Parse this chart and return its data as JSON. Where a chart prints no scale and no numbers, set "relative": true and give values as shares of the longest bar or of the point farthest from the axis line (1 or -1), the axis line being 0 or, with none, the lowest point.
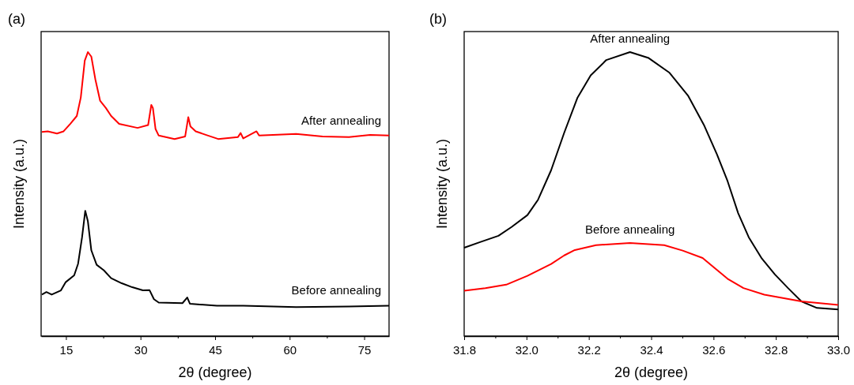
{
  "chart_data": [
    {
      "type": "line",
      "title": "(a)",
      "xlabel": "2θ (degree)",
      "ylabel": "Intensity (a.u.)",
      "relative": true,
      "legend": false,
      "grid": false,
      "tick_labels": "x",
      "xlim": [
        10,
        80
      ],
      "xticks": [
        {
          "value": 15,
          "label": "15"
        },
        {
          "value": 22.5,
          "label": null
        },
        {
          "value": 30,
          "label": "30"
        },
        {
          "value": 37.5,
          "label": null
        },
        {
          "value": 45,
          "label": "45"
        },
        {
          "value": 52.5,
          "label": null
        },
        {
          "value": 60,
          "label": "60"
        },
        {
          "value": 67.5,
          "label": null
        },
        {
          "value": 75,
          "label": "75"
        }
      ],
      "series": [
        {
          "name": "After annealing",
          "color": "#ff0000",
          "x": [
            10.16,
            11.33,
            13.19,
            14.52,
            15.85,
            17.18,
            17.98,
            18.78,
            19.41,
            20.1,
            20.9,
            21.86,
            23.03,
            24.09,
            25.69,
            29.41,
            31.53,
            32.17,
            32.49,
            33.02,
            33.66,
            36.85,
            38.98,
            39.61,
            40.04,
            41.1,
            43.23,
            45.62,
            49.61,
            50.14,
            50.67,
            53.33,
            53.86,
            61.31,
            66.62,
            71.94,
            76.19,
            80
          ],
          "values": [
            0.719,
            0.721,
            0.713,
            0.721,
            0.747,
            0.775,
            0.84,
            0.97,
            1.0,
            0.984,
            0.905,
            0.829,
            0.803,
            0.775,
            0.747,
            0.733,
            0.743,
            0.814,
            0.803,
            0.729,
            0.706,
            0.694,
            0.703,
            0.771,
            0.738,
            0.721,
            0.708,
            0.694,
            0.701,
            0.715,
            0.696,
            0.721,
            0.706,
            0.712,
            0.703,
            0.701,
            0.708,
            0.706
          ]
        },
        {
          "name": "Before annealing",
          "color": "#000000",
          "x": [
            10.16,
            11.07,
            12.13,
            13.99,
            14.95,
            16.65,
            17.44,
            18.24,
            18.88,
            19.41,
            20.1,
            21.17,
            22.6,
            24.09,
            26.22,
            28.34,
            30.47,
            31.8,
            32.7,
            33.66,
            38.44,
            39.4,
            39.93,
            45.36,
            50.67,
            61.31,
            71.94,
            80
          ],
          "values": [
            0.146,
            0.155,
            0.146,
            0.161,
            0.19,
            0.214,
            0.255,
            0.348,
            0.441,
            0.404,
            0.302,
            0.251,
            0.232,
            0.204,
            0.186,
            0.172,
            0.161,
            0.162,
            0.13,
            0.118,
            0.116,
            0.136,
            0.114,
            0.107,
            0.107,
            0.102,
            0.104,
            0.107
          ]
        }
      ]
    },
    {
      "type": "line",
      "title": "(b)",
      "xlabel": "2θ (degree)",
      "ylabel": "Intensity (a.u.)",
      "relative": true,
      "legend": false,
      "grid": false,
      "tick_labels": "x",
      "xlim": [
        31.8,
        33.0
      ],
      "xticks": [
        {
          "value": 31.8,
          "label": "31.8"
        },
        {
          "value": 31.9,
          "label": null
        },
        {
          "value": 32.0,
          "label": "32.0"
        },
        {
          "value": 32.1,
          "label": null
        },
        {
          "value": 32.2,
          "label": "32.2"
        },
        {
          "value": 32.3,
          "label": null
        },
        {
          "value": 32.4,
          "label": "32.4"
        },
        {
          "value": 32.5,
          "label": null
        },
        {
          "value": 32.6,
          "label": "32.6"
        },
        {
          "value": 32.7,
          "label": null
        },
        {
          "value": 32.8,
          "label": "32.8"
        },
        {
          "value": 32.9,
          "label": null
        },
        {
          "value": 33.0,
          "label": "33.0"
        }
      ],
      "series": [
        {
          "name": "After annealing",
          "color": "#000000",
          "x": [
            31.8,
            31.851,
            31.91,
            31.952,
            32.003,
            32.037,
            32.079,
            32.121,
            32.163,
            32.206,
            32.256,
            32.332,
            32.392,
            32.459,
            32.518,
            32.569,
            32.611,
            32.645,
            32.679,
            32.713,
            32.755,
            32.797,
            32.839,
            32.882,
            32.932,
            33.0
          ],
          "values": [
            0.311,
            0.331,
            0.353,
            0.384,
            0.426,
            0.48,
            0.584,
            0.716,
            0.838,
            0.918,
            0.972,
            1.0,
            0.979,
            0.927,
            0.847,
            0.744,
            0.64,
            0.546,
            0.433,
            0.348,
            0.273,
            0.217,
            0.169,
            0.122,
            0.099,
            0.094
          ]
        },
        {
          "name": "Before annealing",
          "color": "#ff0000",
          "x": [
            31.8,
            31.868,
            31.935,
            32.003,
            32.079,
            32.121,
            32.155,
            32.223,
            32.332,
            32.442,
            32.501,
            32.565,
            32.603,
            32.645,
            32.696,
            32.763,
            32.882,
            33.0
          ],
          "values": [
            0.16,
            0.169,
            0.181,
            0.212,
            0.254,
            0.284,
            0.303,
            0.32,
            0.328,
            0.32,
            0.301,
            0.275,
            0.24,
            0.202,
            0.169,
            0.146,
            0.122,
            0.11
          ]
        }
      ]
    }
  ]
}
